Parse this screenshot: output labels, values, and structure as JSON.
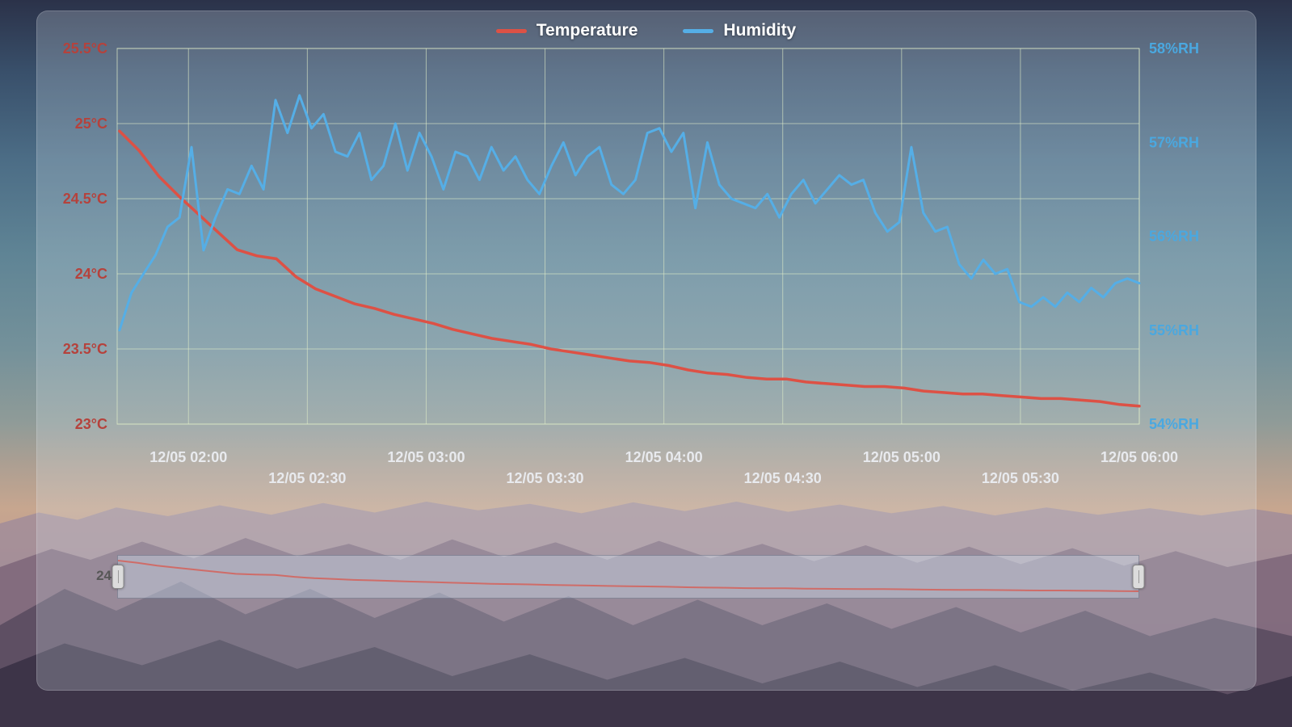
{
  "chart_data": {
    "type": "line",
    "title": "",
    "legend": [
      "Temperature",
      "Humidity"
    ],
    "legend_position": "top-center",
    "grid": {
      "show": true,
      "line_color": "rgba(224,236,200,0.6)"
    },
    "x_axis": {
      "type": "time",
      "range_hours": [
        1.7,
        6.0
      ],
      "tick_hours": [
        2,
        2.5,
        3,
        3.5,
        4,
        4.5,
        5,
        5.5,
        6
      ],
      "tick_labels": [
        "12/05 02:00",
        "12/05 02:30",
        "12/05 03:00",
        "12/05 03:30",
        "12/05 04:00",
        "12/05 04:30",
        "12/05 05:00",
        "12/05 05:30",
        "12/05 06:00"
      ]
    },
    "y_axis_left": {
      "name": "Temperature",
      "unit": "°C",
      "min": 23,
      "max": 25.5,
      "ticks": [
        "25.5°C",
        "25°C",
        "24.5°C",
        "24°C",
        "23.5°C",
        "23°C"
      ],
      "color": "#b5423c"
    },
    "y_axis_right": {
      "name": "Humidity",
      "unit": "%RH",
      "min": 54,
      "max": 58,
      "ticks": [
        "58%RH",
        "57%RH",
        "56%RH",
        "55%RH",
        "54%RH"
      ],
      "color": "#4aa8e0"
    },
    "series": [
      {
        "name": "Temperature",
        "axis": "left",
        "color": "#dd5145",
        "width": 3.5,
        "start_hour": 1.71,
        "end_hour": 6.0,
        "values": [
          24.95,
          24.82,
          24.65,
          24.52,
          24.4,
          24.28,
          24.16,
          24.12,
          24.1,
          23.98,
          23.9,
          23.85,
          23.8,
          23.77,
          23.73,
          23.7,
          23.67,
          23.63,
          23.6,
          23.57,
          23.55,
          23.53,
          23.5,
          23.48,
          23.46,
          23.44,
          23.42,
          23.41,
          23.39,
          23.36,
          23.34,
          23.33,
          23.31,
          23.3,
          23.3,
          23.28,
          23.27,
          23.26,
          23.25,
          23.25,
          23.24,
          23.22,
          23.21,
          23.2,
          23.2,
          23.19,
          23.18,
          23.17,
          23.17,
          23.16,
          23.15,
          23.13,
          23.12
        ]
      },
      {
        "name": "Humidity",
        "axis": "right",
        "color": "#55aee6",
        "width": 3,
        "start_hour": 1.71,
        "end_hour": 6.0,
        "values": [
          55.0,
          55.4,
          55.6,
          55.8,
          56.1,
          56.2,
          56.95,
          55.85,
          56.2,
          56.5,
          56.45,
          56.75,
          56.5,
          57.45,
          57.1,
          57.5,
          57.15,
          57.3,
          56.9,
          56.85,
          57.1,
          56.6,
          56.75,
          57.2,
          56.7,
          57.1,
          56.85,
          56.5,
          56.9,
          56.85,
          56.6,
          56.95,
          56.7,
          56.85,
          56.6,
          56.45,
          56.75,
          57.0,
          56.65,
          56.85,
          56.95,
          56.55,
          56.45,
          56.6,
          57.1,
          57.15,
          56.9,
          57.1,
          56.3,
          57.0,
          56.55,
          56.4,
          56.35,
          56.3,
          56.45,
          56.2,
          56.45,
          56.6,
          56.35,
          56.5,
          56.65,
          56.55,
          56.6,
          56.25,
          56.05,
          56.15,
          56.95,
          56.25,
          56.05,
          56.1,
          55.7,
          55.55,
          55.75,
          55.6,
          55.65,
          55.3,
          55.25,
          55.35,
          55.25,
          55.4,
          55.3,
          55.45,
          55.35,
          55.5,
          55.55,
          55.5
        ]
      }
    ],
    "datazoom": {
      "left_label": "24",
      "range_percent": [
        0,
        100
      ],
      "shadow_series": "Temperature"
    }
  }
}
